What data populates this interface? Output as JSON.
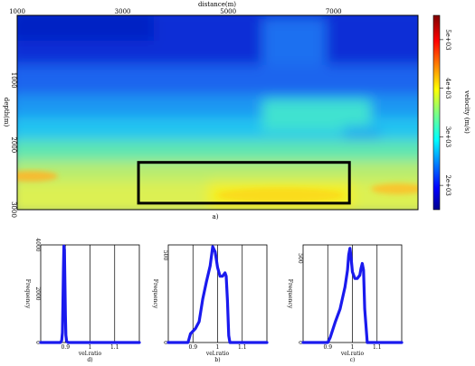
{
  "chart_data": [
    {
      "type": "heatmap",
      "panel_label": "a)",
      "xlabel": "distance(m)",
      "ylabel": "depth(m)",
      "xlim": [
        1000,
        8600
      ],
      "ylim": [
        0,
        3000
      ],
      "x_ticks": [
        "1000",
        "3000",
        "5000",
        "7000"
      ],
      "x_tick_values": [
        1000,
        3000,
        5000,
        7000
      ],
      "y_ticks": [
        "1000",
        "2000",
        "3000"
      ],
      "y_tick_values": [
        1000,
        2000,
        3000
      ],
      "colorbar": {
        "label": "velocity (m/s)",
        "range": [
          1500,
          5500
        ],
        "ticks": [
          "2e+03",
          "3e+03",
          "4e+03",
          "5e+03"
        ],
        "tick_values": [
          2000,
          3000,
          4000,
          5000
        ],
        "colormap": "jet"
      },
      "box": {
        "x": [
          3300,
          7300
        ],
        "depth": [
          2270,
          2900
        ],
        "color": "#000000"
      }
    },
    {
      "type": "line",
      "panel_label": "d)",
      "xlabel": "vel.ratio",
      "ylabel": "Frequency",
      "xlim": [
        0.8,
        1.2
      ],
      "ylim": [
        0,
        4000
      ],
      "x_ticks": [
        "0.9",
        "1",
        "1.1"
      ],
      "x_tick_values": [
        0.9,
        1.0,
        1.1
      ],
      "y_ticks": [
        "0",
        "2000",
        "4000"
      ],
      "y_tick_values": [
        0,
        2000,
        4000
      ],
      "series": [
        {
          "color": "#1a1aee",
          "x": [
            0.8,
            0.88,
            0.885,
            0.888,
            0.89,
            0.892,
            0.894,
            0.896,
            0.898,
            0.9,
            0.902,
            0.905,
            0.91,
            1.2
          ],
          "y": [
            0,
            0,
            80,
            400,
            1500,
            3000,
            3950,
            3800,
            2600,
            1100,
            300,
            60,
            0,
            0
          ]
        }
      ]
    },
    {
      "type": "line",
      "panel_label": "b)",
      "xlabel": "vel.ratio",
      "ylabel": "Frequency",
      "xlim": [
        0.8,
        1.2
      ],
      "ylim": [
        0,
        560
      ],
      "x_ticks": [
        "0.9",
        "1",
        "1.1"
      ],
      "x_tick_values": [
        0.9,
        1.0,
        1.1
      ],
      "y_ticks": [
        "0",
        "500"
      ],
      "y_tick_values": [
        0,
        500
      ],
      "series": [
        {
          "color": "#1a1aee",
          "x": [
            0.8,
            0.88,
            0.89,
            0.91,
            0.925,
            0.94,
            0.955,
            0.97,
            0.98,
            0.99,
            1.0,
            1.01,
            1.02,
            1.03,
            1.035,
            1.04,
            1.045,
            1.05,
            1.2
          ],
          "y": [
            0,
            0,
            50,
            80,
            120,
            250,
            350,
            440,
            550,
            520,
            430,
            380,
            380,
            400,
            380,
            240,
            40,
            0,
            0
          ]
        }
      ]
    },
    {
      "type": "line",
      "panel_label": "c)",
      "xlabel": "vel.ratio",
      "ylabel": "Frequency",
      "xlim": [
        0.8,
        1.2
      ],
      "ylim": [
        0,
        580
      ],
      "x_ticks": [
        "0.9",
        "1",
        "1.1"
      ],
      "x_tick_values": [
        0.9,
        1.0,
        1.1
      ],
      "y_ticks": [
        "0",
        "500"
      ],
      "y_tick_values": [
        0,
        500
      ],
      "series": [
        {
          "color": "#1a1aee",
          "x": [
            0.8,
            0.9,
            0.91,
            0.93,
            0.95,
            0.97,
            0.98,
            0.985,
            0.99,
            0.995,
            1.0,
            1.01,
            1.02,
            1.03,
            1.035,
            1.04,
            1.045,
            1.05,
            1.06,
            1.2
          ],
          "y": [
            0,
            0,
            30,
            120,
            200,
            330,
            430,
            520,
            560,
            500,
            420,
            380,
            380,
            400,
            440,
            470,
            430,
            200,
            0,
            0
          ]
        }
      ]
    }
  ]
}
